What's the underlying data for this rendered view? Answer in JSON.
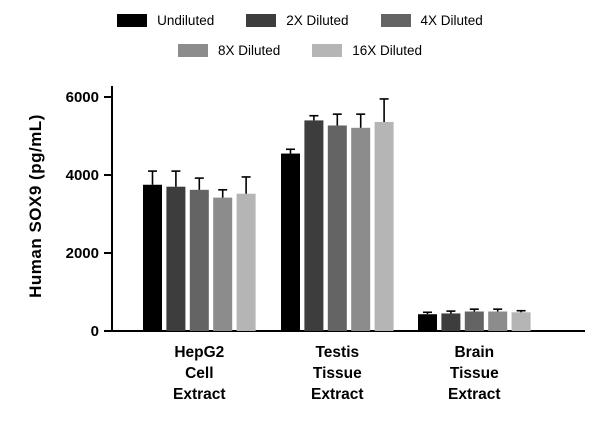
{
  "chart_data": {
    "type": "bar",
    "title": "",
    "xlabel": "",
    "ylabel": "Human SOX9 (pg/mL)",
    "ylim": [
      0,
      6000
    ],
    "yticks": [
      0,
      2000,
      4000,
      6000
    ],
    "ytick_labels": [
      "0",
      "2000",
      "4000",
      "6000"
    ],
    "grid": false,
    "legend_position": "top",
    "categories": [
      [
        "HepG2",
        "Cell",
        "Extract"
      ],
      [
        "Testis",
        "Tissue",
        "Extract"
      ],
      [
        "Brain",
        "Tissue",
        "Extract"
      ]
    ],
    "series": [
      {
        "name": "Undiluted",
        "color": "#000000",
        "values": [
          3750,
          4550,
          430
        ],
        "errors": [
          350,
          110,
          50
        ]
      },
      {
        "name": "2X Diluted",
        "color": "#3d3d3d",
        "values": [
          3700,
          5400,
          450
        ],
        "errors": [
          400,
          120,
          60
        ]
      },
      {
        "name": "4X Diluted",
        "color": "#646464",
        "values": [
          3620,
          5270,
          500
        ],
        "errors": [
          300,
          290,
          60
        ]
      },
      {
        "name": "8X Diluted",
        "color": "#8c8c8c",
        "values": [
          3420,
          5210,
          500
        ],
        "errors": [
          200,
          350,
          60
        ]
      },
      {
        "name": "16X Diluted",
        "color": "#b5b5b5",
        "values": [
          3520,
          5360,
          480
        ],
        "errors": [
          430,
          590,
          40
        ]
      }
    ],
    "error_bar_color": "#000000",
    "axis_color": "#000000"
  }
}
